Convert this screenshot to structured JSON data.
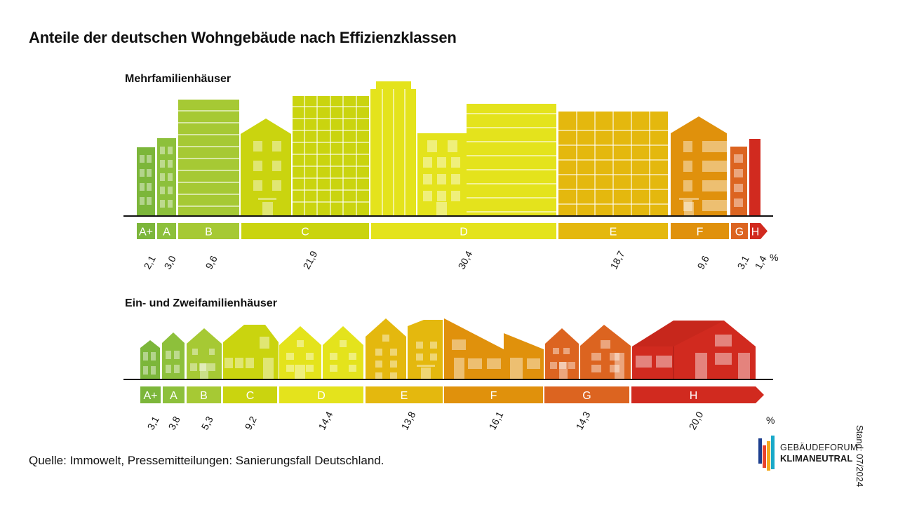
{
  "title": "Anteile der deutschen Wohngebäude nach Effizienzklassen",
  "source": "Quelle: Immowelt, Pressemitteilungen: Sanierungsfall Deutschland.",
  "stand": "Stand: 07/2024",
  "logo": {
    "line1": "GEBÄUDEFORUM",
    "line2": "KLIMANEUTRAL"
  },
  "colors": {
    "A+": "#7cb63a",
    "A": "#8dc03b",
    "B": "#a6c934",
    "C": "#cad40f",
    "D": "#e4e31c",
    "E": "#e4b80e",
    "F": "#e0910c",
    "G": "#dc6420",
    "H": "#d12a1f"
  },
  "chart_data": [
    {
      "type": "bar",
      "title": "Mehrfamilienhäuser",
      "unit": "%",
      "categories": [
        "A+",
        "A",
        "B",
        "C",
        "D",
        "E",
        "F",
        "G",
        "H"
      ],
      "values": [
        "2,1",
        "3,0",
        "9,6",
        "21,9",
        "30,4",
        "18,7",
        "9,6",
        "3,1",
        "1,4"
      ],
      "numeric_values": [
        2.1,
        3.0,
        9.6,
        21.9,
        30.4,
        18.7,
        9.6,
        3.1,
        1.4
      ]
    },
    {
      "type": "bar",
      "title": "Ein- und Zweifamilienhäuser",
      "unit": "%",
      "categories": [
        "A+",
        "A",
        "B",
        "C",
        "D",
        "E",
        "F",
        "G",
        "H"
      ],
      "values": [
        "3,1",
        "3,8",
        "5,3",
        "9,2",
        "14,4",
        "13,8",
        "16,1",
        "14,3",
        "20,0"
      ],
      "numeric_values": [
        3.1,
        3.8,
        5.3,
        9.2,
        14.4,
        13.8,
        16.1,
        14.3,
        20.0
      ]
    }
  ]
}
